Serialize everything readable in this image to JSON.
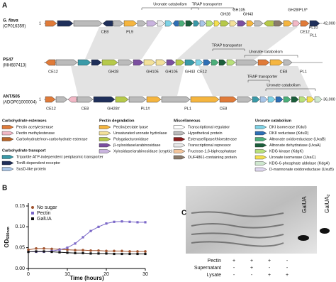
{
  "panel_a": {
    "label": "A",
    "genomes": [
      {
        "name": "G. flava",
        "accession": "(CP016359)",
        "start": "1",
        "end": "42,000",
        "genes": [
          "CE8",
          "PL9",
          "GH28",
          "GH105",
          "GH43",
          "GH28/PL9*",
          "CE12",
          "PL1",
          "PL10"
        ],
        "annotations": [
          "Uronate catabolism",
          "TRAP transporter"
        ]
      },
      {
        "name": "PS47",
        "accession": "(MH687413)",
        "genes": [
          "CE12",
          "GH28",
          "GH105",
          "GH105",
          "GH43",
          "CE12",
          "CE8",
          "PL1"
        ],
        "annotations": [
          "TRAP transporter",
          "Uronate catabolism"
        ]
      },
      {
        "name": "ANT/505",
        "accession": "(ADOP01000004)",
        "start": "1",
        "end": "36,000",
        "genes": [
          "CE12",
          "CE8",
          "GH28#",
          "PL1#",
          "PL1",
          "CE8"
        ],
        "annotations": [
          "TRAP transporter",
          "Uronate catabolism"
        ]
      }
    ],
    "legend": [
      {
        "title": "Carbohydrate esterases",
        "items": [
          "Pectin acetylesterase",
          "Pectin methylesterase",
          "Carbohydrate/non-carbohydrate esterase"
        ]
      },
      {
        "title": "Carbohydrate transport",
        "items": [
          "Tripartite ATP-independent periplasmic transporter",
          "TonB-dependent receptor",
          "SusD-like protein"
        ]
      },
      {
        "title": "Pectin degradation",
        "items": [
          "Pectin/pectate lyase",
          "Unsaturated uronate hydrolase",
          "Polygalacturonidase",
          "β-xylosidase/arabinosidase",
          "Xylosidase/arabinosidase (cryptic)"
        ]
      },
      {
        "title": "Miscellaneous",
        "items": [
          "Transcriptional regulator",
          "Hypothetical protein",
          "Esterase/lipase/thioesterase",
          "Transcriptional repressor",
          "Fructose-1,6-biphosphatase",
          "DUF4861-containing protein"
        ]
      },
      {
        "title": "Uronate catabolism",
        "items": [
          "DKI isomerase (KduI)",
          "DKII reductase (KduD)",
          "Altronate oxidoreductase (UxaB)",
          "Altronate dehydratase (UxaA)",
          "KDG kinase (KdgK)",
          "Uronate isomerase (UxaC)",
          "KDG-6-phosphate aldolase (KdgA)",
          "D-mannonate oxidoreductase (UxuB)"
        ]
      }
    ]
  },
  "chart_data": {
    "type": "line",
    "panel_label": "B",
    "xlabel": "Time (hours)",
    "ylabel": "OD",
    "ylabel_sub": "600nm",
    "x": [
      0,
      2,
      4,
      6,
      8,
      10,
      12,
      14,
      16,
      18,
      20,
      22,
      24,
      26,
      28,
      30
    ],
    "xlim": [
      0,
      30
    ],
    "xticks": [
      0,
      10,
      20,
      30
    ],
    "ylim": [
      0,
      0.15
    ],
    "yticks": [
      {
        "value": 0,
        "label": "0.00"
      },
      {
        "value": 0.05,
        "label": "0.05"
      },
      {
        "value": 0.1,
        "label": "0.10"
      },
      {
        "value": 0.15,
        "label": "0.15"
      }
    ],
    "legend": "upper left",
    "series": [
      {
        "name": "No sugar",
        "color": "#a0522d",
        "marker": "circle",
        "values": [
          0.045,
          0.048,
          0.048,
          0.047,
          0.046,
          0.045,
          0.044,
          0.044,
          0.043,
          0.043,
          0.042,
          0.042,
          0.042,
          0.041,
          0.041,
          0.041
        ]
      },
      {
        "name": "Pectin",
        "color": "#7b68c8",
        "marker": "square",
        "values": [
          0.04,
          0.04,
          0.04,
          0.042,
          0.045,
          0.05,
          0.06,
          0.075,
          0.09,
          0.1,
          0.108,
          0.112,
          0.113,
          0.112,
          0.111,
          0.111
        ]
      },
      {
        "name": "GalUA",
        "color": "#111111",
        "marker": "square",
        "values": [
          0.04,
          0.041,
          0.041,
          0.04,
          0.039,
          0.038,
          0.037,
          0.037,
          0.036,
          0.036,
          0.036,
          0.035,
          0.035,
          0.035,
          0.035,
          0.035
        ]
      }
    ]
  },
  "panel_c": {
    "label": "C",
    "lane_labels": [
      "GalUA",
      "GalUA"
    ],
    "lane_subscript": "2",
    "rows": [
      {
        "name": "Pectin",
        "signs": [
          "+",
          "+",
          "+",
          "-"
        ]
      },
      {
        "name": "Supernatant",
        "signs": [
          "-",
          "+",
          "-",
          "-"
        ]
      },
      {
        "name": "Lysate",
        "signs": [
          "-",
          "-",
          "+",
          "+"
        ]
      }
    ]
  }
}
